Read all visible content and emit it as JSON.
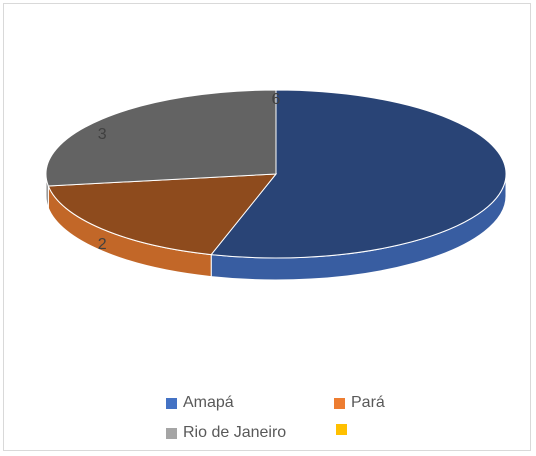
{
  "chart_data": {
    "type": "pie",
    "style": "3d",
    "title": "",
    "slices": [
      {
        "label": "Amapá",
        "value": 6,
        "color": "#4472C4",
        "data_label": "6"
      },
      {
        "label": "Pará",
        "value": 2,
        "color": "#ED7D31",
        "data_label": "2"
      },
      {
        "label": "Rio de Janeiro",
        "value": 3,
        "color": "#A5A5A5",
        "data_label": "3"
      },
      {
        "label": "",
        "value": 0,
        "color": "#FFC000",
        "data_label": ""
      }
    ],
    "legend": {
      "position": "bottom",
      "items": [
        {
          "label": "Amapá",
          "color": "#4472C4"
        },
        {
          "label": "Pará",
          "color": "#ED7D31"
        },
        {
          "label": "Rio de Janeiro",
          "color": "#A5A5A5"
        },
        {
          "label": "",
          "color": "#FFC000"
        }
      ]
    }
  }
}
